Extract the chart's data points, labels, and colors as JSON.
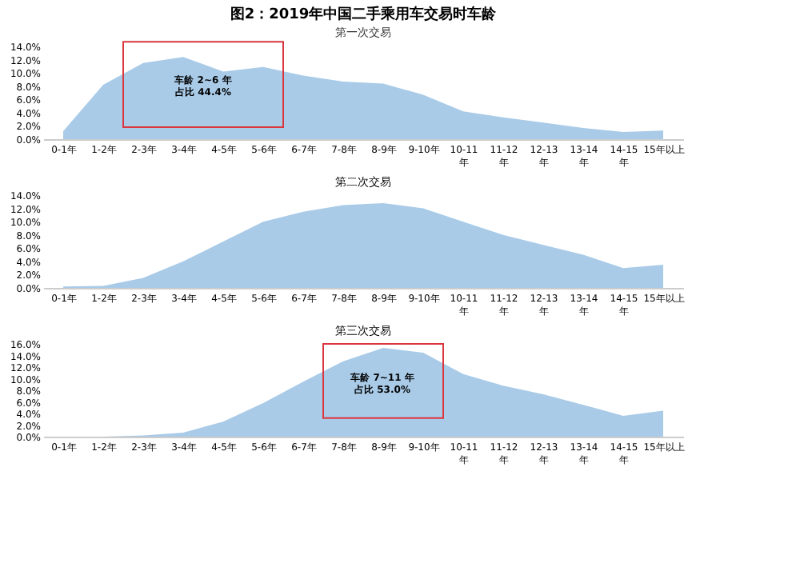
{
  "chart_data": [
    {
      "type": "area",
      "title": "图2：2019年中国二手乘用车交易时车龄",
      "subtitle": "第一次交易",
      "categories": [
        "0-1年",
        "1-2年",
        "2-3年",
        "3-4年",
        "4-5年",
        "5-6年",
        "6-7年",
        "7-8年",
        "8-9年",
        "9-10年",
        "10-11年",
        "11-12年",
        "12-13年",
        "13-14年",
        "14-15年",
        "15年以上"
      ],
      "series": [
        {
          "color": "#a9cbe8",
          "values": [
            1.2,
            8.2,
            11.5,
            12.4,
            10.2,
            10.9,
            9.6,
            8.7,
            8.4,
            6.7,
            4.2,
            3.3,
            2.5,
            1.7,
            1.1,
            1.3
          ]
        }
      ],
      "ylim": [
        0,
        14
      ],
      "yticks": [
        {
          "value": 0,
          "label": "0.0%"
        },
        {
          "value": 2,
          "label": "2.0%"
        },
        {
          "value": 4,
          "label": "4.0%"
        },
        {
          "value": 6,
          "label": "6.0%"
        },
        {
          "value": 8,
          "label": "8.0%"
        },
        {
          "value": 10,
          "label": "10.0%"
        },
        {
          "value": 12,
          "label": "12.0%"
        },
        {
          "value": 14,
          "label": "14.0%"
        }
      ],
      "annotations": [
        "车龄 2~6 年",
        "占比 44.4%"
      ],
      "grid": false
    },
    {
      "type": "area",
      "subtitle": "第二次交易",
      "categories": [
        "0-1年",
        "1-2年",
        "2-3年",
        "3-4年",
        "4-5年",
        "5-6年",
        "6-7年",
        "7-8年",
        "8-9年",
        "9-10年",
        "10-11年",
        "11-12年",
        "12-13年",
        "13-14年",
        "14-15年",
        "15年以上"
      ],
      "series": [
        {
          "color": "#a9cbe8",
          "values": [
            0.2,
            0.3,
            1.5,
            4.0,
            7.0,
            10.0,
            11.5,
            12.5,
            12.8,
            12.0,
            10.0,
            8.0,
            6.5,
            5.0,
            3.0,
            3.5
          ]
        }
      ],
      "ylim": [
        0,
        14
      ],
      "yticks": [
        {
          "value": 0,
          "label": "0.0%"
        },
        {
          "value": 2,
          "label": "2.0%"
        },
        {
          "value": 4,
          "label": "4.0%"
        },
        {
          "value": 6,
          "label": "6.0%"
        },
        {
          "value": 8,
          "label": "8.0%"
        },
        {
          "value": 10,
          "label": "10.0%"
        },
        {
          "value": 12,
          "label": "12.0%"
        },
        {
          "value": 14,
          "label": "14.0%"
        }
      ],
      "grid": false
    },
    {
      "type": "area",
      "subtitle": "第三次交易",
      "categories": [
        "0-1年",
        "1-2年",
        "2-3年",
        "3-4年",
        "4-5年",
        "5-6年",
        "6-7年",
        "7-8年",
        "8-9年",
        "9-10年",
        "10-11年",
        "11-12年",
        "12-13年",
        "13-14年",
        "14-15年",
        "15年以上"
      ],
      "series": [
        {
          "color": "#a9cbe8",
          "values": [
            0,
            0,
            0.2,
            0.7,
            2.6,
            5.8,
            9.5,
            13.0,
            15.3,
            14.5,
            10.8,
            8.8,
            7.3,
            5.5,
            3.6,
            4.5
          ]
        }
      ],
      "ylim": [
        0,
        16
      ],
      "yticks": [
        {
          "value": 0,
          "label": "0.0%"
        },
        {
          "value": 2,
          "label": "2.0%"
        },
        {
          "value": 4,
          "label": "4.0%"
        },
        {
          "value": 6,
          "label": "6.0%"
        },
        {
          "value": 8,
          "label": "8.0%"
        },
        {
          "value": 10,
          "label": "10.0%"
        },
        {
          "value": 12,
          "label": "12.0%"
        },
        {
          "value": 14,
          "label": "14.0%"
        },
        {
          "value": 16,
          "label": "16.0%"
        }
      ],
      "annotations": [
        "车龄 7~11 年",
        "占比 53.0%"
      ],
      "grid": false
    }
  ]
}
